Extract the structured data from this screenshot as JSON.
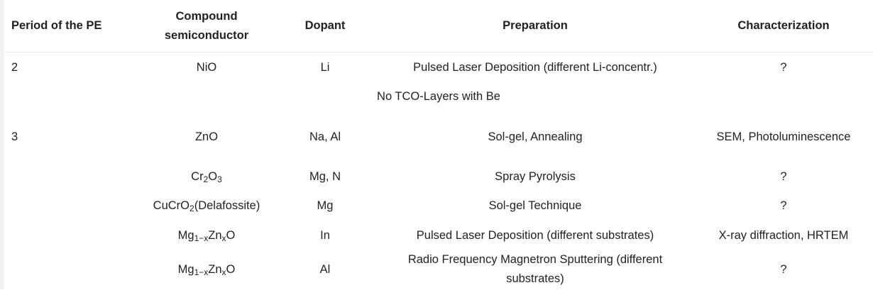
{
  "headers": {
    "period": "Period of the PE",
    "compound": "Compound semiconductor",
    "dopant": "Dopant",
    "preparation": "Preparation",
    "characterization": "Characterization"
  },
  "rows": [
    {
      "period": "2",
      "compound": "NiO",
      "dopant": "Li",
      "preparation": "Pulsed Laser Deposition (different Li-concentr.)",
      "characterization": "?"
    },
    {
      "note": "No TCO-Layers with Be"
    },
    {
      "period": "3",
      "compound": "ZnO",
      "dopant": "Na, Al",
      "preparation": "Sol-gel, Annealing",
      "characterization": "SEM, Photoluminescence"
    },
    {
      "compound_parts": [
        "Cr",
        "2",
        "O",
        "3"
      ],
      "dopant": "Mg, N",
      "preparation": "Spray Pyrolysis",
      "characterization": "?"
    },
    {
      "compound_parts": [
        "CuCrO",
        "2",
        "(Delafossite)"
      ],
      "dopant": "Mg",
      "preparation": "Sol-gel Technique",
      "characterization": "?"
    },
    {
      "compound_parts": [
        "Mg",
        "1−x",
        "Zn",
        "x",
        "O"
      ],
      "dopant": "In",
      "preparation": "Pulsed Laser Deposition (different substrates)",
      "characterization": "X-ray diffraction, HRTEM"
    },
    {
      "compound_parts": [
        "Mg",
        "1−x",
        "Zn",
        "x",
        "O"
      ],
      "dopant": "Al",
      "preparation": "Radio Frequency Magnetron Sputtering (different substrates)",
      "characterization": "?"
    }
  ]
}
